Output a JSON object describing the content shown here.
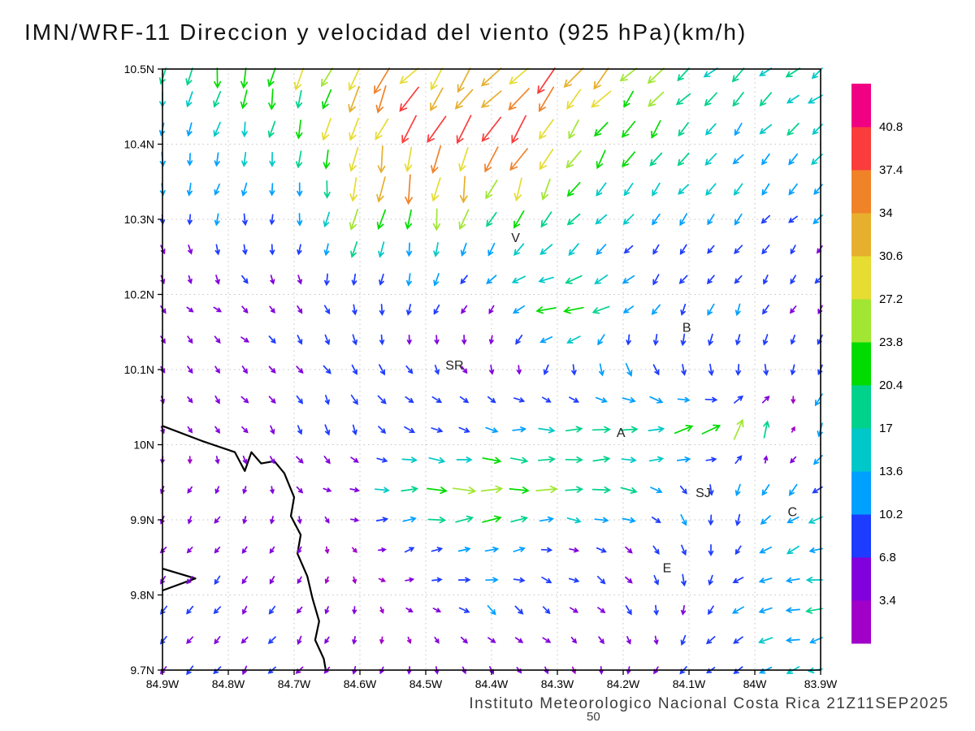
{
  "title": "IMN/WRF-11 Direccion y velocidad del viento (925 hPa)(km/h)",
  "caption": "Instituto Meteorologico Nacional Costa Rica 21Z11SEP2025",
  "frame_label": "50",
  "chart_data": {
    "type": "quiver",
    "model": "IMN/WRF-11",
    "variable": "Direccion y velocidad del viento",
    "level": "925 hPa",
    "units": "km/h",
    "valid_time": "21Z11SEP2025",
    "grid_lines": "dotted",
    "legend_position": "right",
    "x_axis": {
      "range": [
        -84.9,
        -83.9
      ],
      "tick_values": [
        -84.9,
        -84.8,
        -84.7,
        -84.6,
        -84.5,
        -84.4,
        -84.3,
        -84.2,
        -84.1,
        -84.0,
        -83.9
      ],
      "tick_labels": [
        "84.9W",
        "84.8W",
        "84.7W",
        "84.6W",
        "84.5W",
        "84.4W",
        "84.3W",
        "84.2W",
        "84.1W",
        "84W",
        "83.9W"
      ]
    },
    "y_axis": {
      "range": [
        9.7,
        10.5
      ],
      "tick_values": [
        10.5,
        10.4,
        10.3,
        10.2,
        10.1,
        10.0,
        9.9,
        9.8,
        9.7
      ],
      "tick_labels": [
        "10.5N",
        "10.4N",
        "10.3N",
        "10.2N",
        "10.1N",
        "10N",
        "9.9N",
        "9.8N",
        "9.7N"
      ]
    },
    "grid": {
      "lons": [
        -84.9,
        -84.8,
        -84.7,
        -84.6,
        -84.5,
        -84.4,
        -84.3,
        -84.2,
        -84.1,
        -84.0,
        -83.9
      ],
      "lats_north_to_south": [
        10.5,
        10.42,
        10.34,
        10.26,
        10.18,
        10.1,
        10.02,
        9.94,
        9.86,
        9.78,
        9.7
      ]
    },
    "u_kmh": [
      [
        -3,
        -4,
        -6,
        -18,
        -22,
        -24,
        -22,
        -18,
        -14,
        -12,
        -14
      ],
      [
        -2,
        -4,
        -4,
        -10,
        -16,
        -20,
        -18,
        -14,
        -12,
        -10,
        -12
      ],
      [
        0,
        -4,
        -2,
        -4,
        -6,
        -10,
        -12,
        -10,
        -8,
        -8,
        -10
      ],
      [
        2,
        2,
        0,
        -2,
        -4,
        -8,
        -10,
        -8,
        -6,
        -6,
        -4
      ],
      [
        3,
        4,
        4,
        2,
        -2,
        -4,
        -26,
        -10,
        -4,
        -4,
        -4
      ],
      [
        2,
        4,
        4,
        4,
        4,
        2,
        -2,
        4,
        2,
        0,
        -2
      ],
      [
        2,
        3,
        4,
        4,
        8,
        12,
        16,
        18,
        20,
        10,
        -6
      ],
      [
        -2,
        -2,
        2,
        8,
        24,
        26,
        20,
        16,
        4,
        -4,
        -10
      ],
      [
        -3,
        -3,
        -2,
        2,
        8,
        12,
        8,
        6,
        2,
        -8,
        -14
      ],
      [
        -4,
        -4,
        -3,
        0,
        4,
        8,
        6,
        4,
        0,
        -12,
        -16
      ],
      [
        -4,
        -4,
        -4,
        -2,
        0,
        2,
        2,
        0,
        -4,
        -10,
        -14
      ]
    ],
    "v_kmh": [
      [
        -18,
        -20,
        -24,
        -26,
        -28,
        -28,
        -24,
        -18,
        -14,
        -12,
        -10
      ],
      [
        -14,
        -16,
        -18,
        -28,
        -32,
        -30,
        -24,
        -18,
        -14,
        -12,
        -10
      ],
      [
        -10,
        -12,
        -10,
        -30,
        -34,
        -26,
        -18,
        -14,
        -12,
        -10,
        -8
      ],
      [
        -6,
        -8,
        -8,
        -16,
        -14,
        -10,
        -10,
        -8,
        -8,
        -6,
        -6
      ],
      [
        -4,
        -3,
        -4,
        -8,
        -8,
        -6,
        -6,
        -6,
        -10,
        -8,
        -6
      ],
      [
        -4,
        -4,
        -6,
        -8,
        -6,
        -6,
        -8,
        -12,
        -10,
        -8,
        -8
      ],
      [
        -3,
        -4,
        -6,
        -8,
        -4,
        -2,
        0,
        2,
        6,
        24,
        -14
      ],
      [
        -4,
        -4,
        -4,
        0,
        2,
        0,
        0,
        -2,
        -8,
        -12,
        -6
      ],
      [
        -4,
        -4,
        -4,
        -2,
        4,
        4,
        -2,
        -4,
        -10,
        -6,
        -4
      ],
      [
        -6,
        -6,
        -5,
        -3,
        -2,
        -6,
        -4,
        -6,
        -8,
        -4,
        -2
      ],
      [
        -6,
        -6,
        -5,
        -4,
        -4,
        -4,
        -3,
        -4,
        -6,
        -4,
        -4
      ]
    ],
    "display_grid": {
      "cols": 25,
      "rows": 21
    },
    "speed_levels_kmh": [
      3.4,
      6.8,
      10.2,
      13.6,
      17,
      20.4,
      23.8,
      27.2,
      30.6,
      34,
      37.4,
      40.8
    ],
    "speed_colors": [
      "#a000c8",
      "#8200dc",
      "#1e3cff",
      "#00a0ff",
      "#00c8c8",
      "#00d28c",
      "#00dc00",
      "#a0e632",
      "#e6dc32",
      "#e6af2d",
      "#f08228",
      "#fa3c3c",
      "#f00082"
    ],
    "colorbar_labels": [
      "3.4",
      "6.8",
      "10.2",
      "13.6",
      "17",
      "20.4",
      "23.8",
      "27.2",
      "30.6",
      "34",
      "37.4",
      "40.8"
    ],
    "city_labels": [
      {
        "text": "V",
        "lon": -84.37,
        "lat": 10.27
      },
      {
        "text": "B",
        "lon": -84.11,
        "lat": 10.15
      },
      {
        "text": "SR",
        "lon": -84.47,
        "lat": 10.1
      },
      {
        "text": "A",
        "lon": -84.21,
        "lat": 10.01
      },
      {
        "text": "SJ",
        "lon": -84.09,
        "lat": 9.93
      },
      {
        "text": "C",
        "lon": -83.95,
        "lat": 9.905
      },
      {
        "text": "E",
        "lon": -84.14,
        "lat": 9.83
      }
    ],
    "coastline_lonlat": [
      [
        [
          -84.9,
          10.025
        ],
        [
          -84.84,
          10.005
        ],
        [
          -84.79,
          9.99
        ],
        [
          -84.775,
          9.965
        ],
        [
          -84.765,
          9.99
        ],
        [
          -84.75,
          9.975
        ],
        [
          -84.73,
          9.978
        ],
        [
          -84.715,
          9.962
        ],
        [
          -84.7,
          9.93
        ],
        [
          -84.705,
          9.905
        ],
        [
          -84.69,
          9.88
        ],
        [
          -84.695,
          9.855
        ],
        [
          -84.68,
          9.825
        ],
        [
          -84.672,
          9.795
        ],
        [
          -84.662,
          9.765
        ],
        [
          -84.668,
          9.74
        ],
        [
          -84.655,
          9.715
        ],
        [
          -84.652,
          9.7
        ]
      ],
      [
        [
          -84.9,
          9.835
        ],
        [
          -84.85,
          9.822
        ],
        [
          -84.9,
          9.806
        ]
      ]
    ]
  }
}
